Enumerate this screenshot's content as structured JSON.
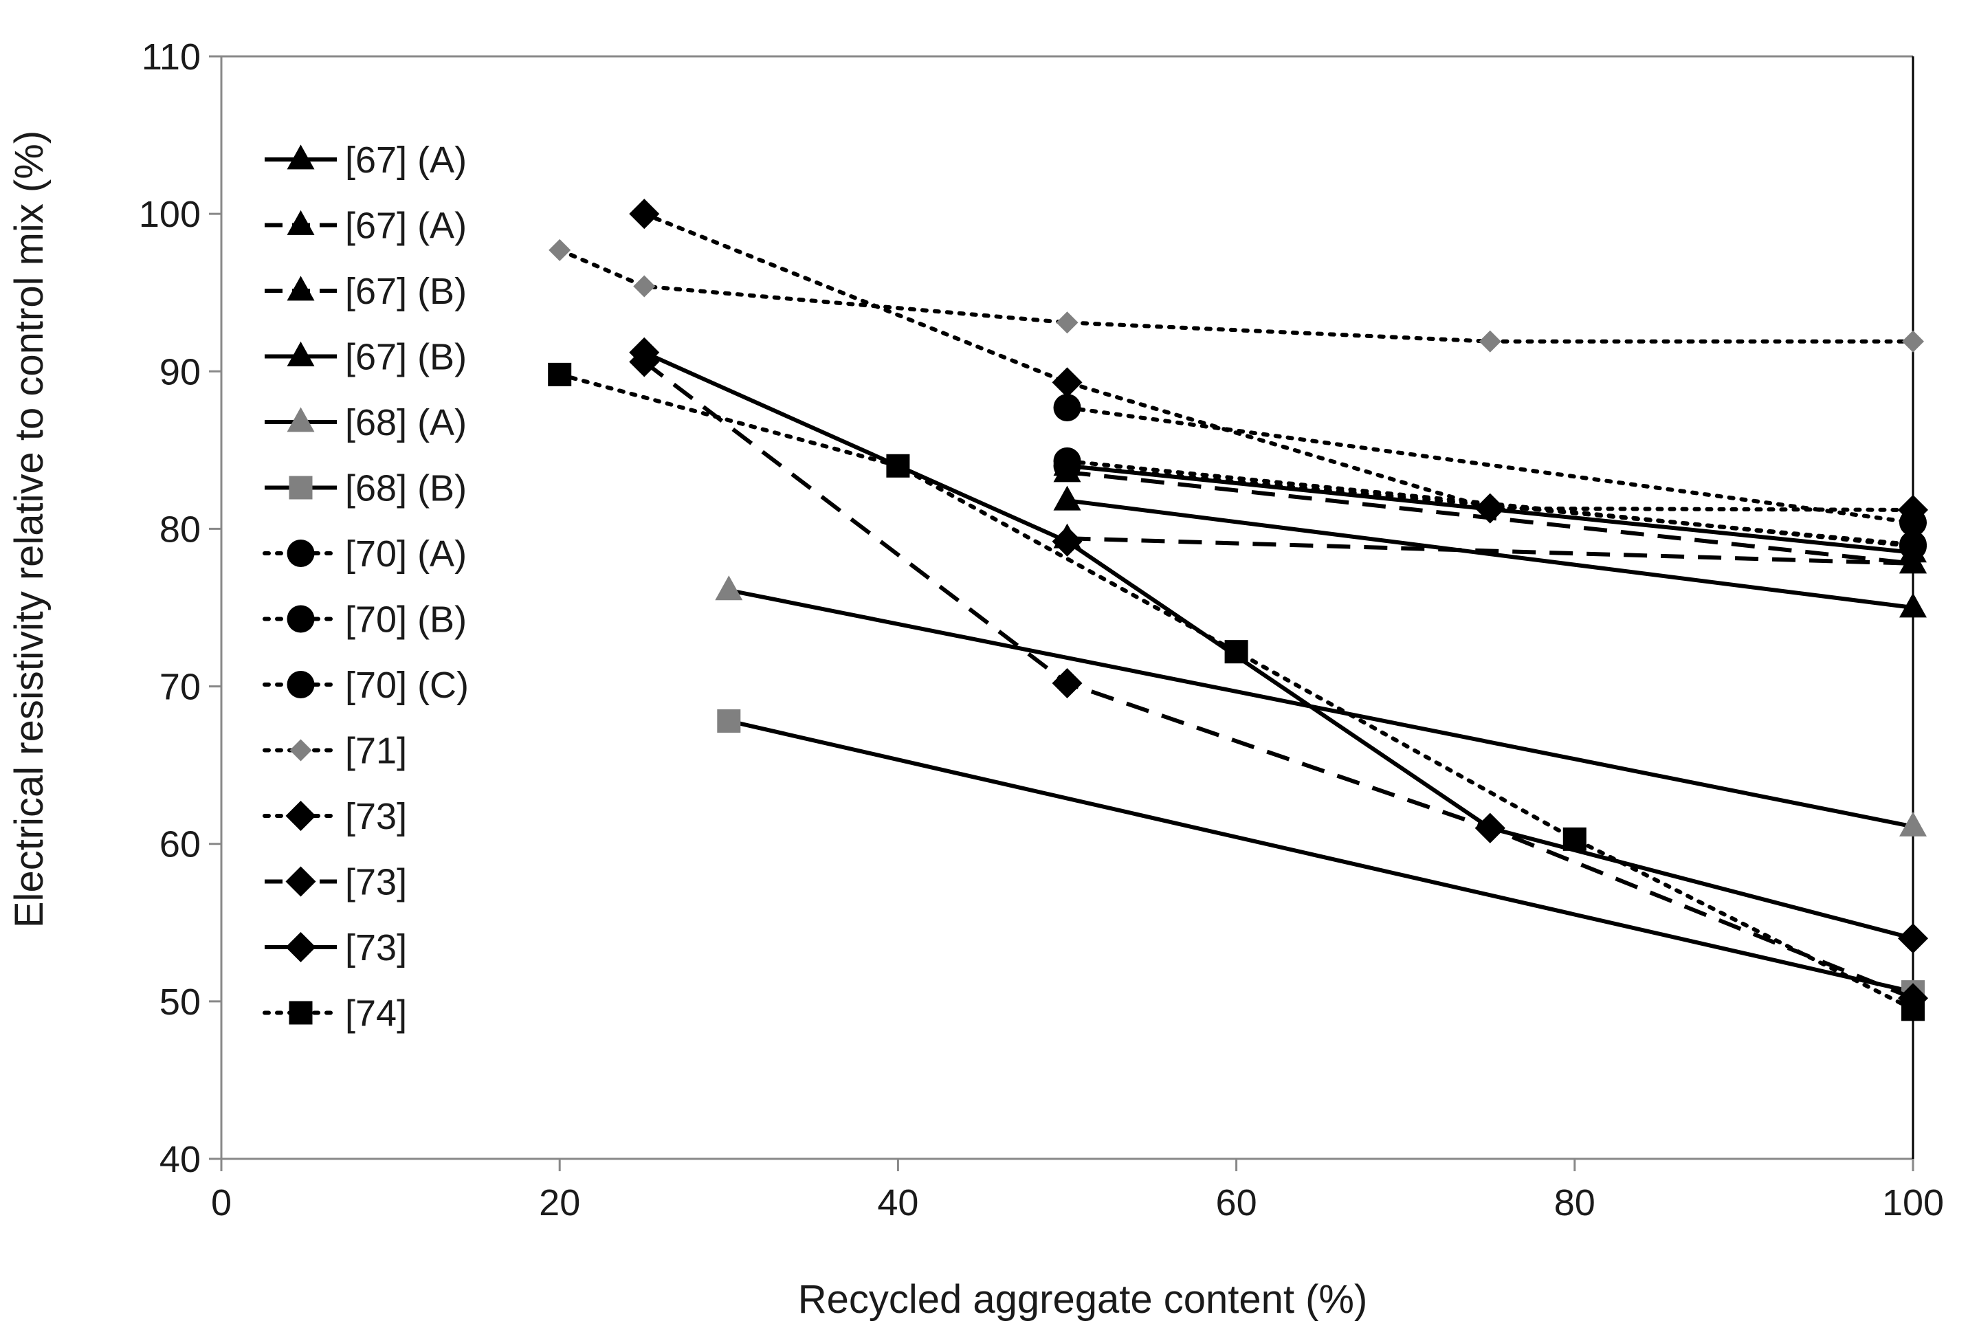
{
  "chart_data": {
    "type": "line",
    "title": "",
    "xlabel": "Recycled aggregate content (%)",
    "ylabel": "Electrical resistivity relative to control mix (%)",
    "xlim": [
      0,
      100
    ],
    "ylim": [
      40,
      110
    ],
    "xticks": [
      0,
      20,
      40,
      60,
      80,
      100
    ],
    "yticks": [
      40,
      50,
      60,
      70,
      80,
      90,
      100,
      110
    ],
    "grid": false,
    "legend_position": "top-left",
    "series": [
      {
        "name": "[67] (A)",
        "dash": "solid",
        "marker": "triangle",
        "color": "#000000",
        "x": [
          50,
          100
        ],
        "y": [
          81.8,
          75.0
        ]
      },
      {
        "name": "[67] (A)",
        "dash": "dashed",
        "marker": "triangle",
        "color": "#000000",
        "x": [
          50,
          100
        ],
        "y": [
          79.4,
          77.8
        ]
      },
      {
        "name": "[67] (B)",
        "dash": "dashed",
        "marker": "triangle",
        "color": "#000000",
        "x": [
          50,
          100
        ],
        "y": [
          83.6,
          77.8
        ]
      },
      {
        "name": "[67] (B)",
        "dash": "solid",
        "marker": "triangle",
        "color": "#000000",
        "x": [
          50,
          100
        ],
        "y": [
          84.0,
          78.5
        ]
      },
      {
        "name": "[68] (A)",
        "dash": "solid",
        "marker": "triangle",
        "color": "#808080",
        "x": [
          30,
          100
        ],
        "y": [
          76.1,
          61.1
        ]
      },
      {
        "name": "[68] (B)",
        "dash": "solid",
        "marker": "square",
        "color": "#808080",
        "x": [
          30,
          100
        ],
        "y": [
          67.8,
          50.6
        ]
      },
      {
        "name": "[70] (A)",
        "dash": "dotted",
        "marker": "circle",
        "color": "#000000",
        "x": [
          50,
          100
        ],
        "y": [
          87.7,
          80.4
        ]
      },
      {
        "name": "[70] (B)",
        "dash": "dotted",
        "marker": "circle",
        "color": "#000000",
        "x": [
          50,
          100
        ],
        "y": [
          84.3,
          78.9
        ]
      },
      {
        "name": "[70] (C)",
        "dash": "dotted",
        "marker": "circle",
        "color": "#000000",
        "x": [
          50,
          100
        ],
        "y": [
          84.0,
          79.0
        ]
      },
      {
        "name": "[71]",
        "dash": "dotted",
        "marker": "diamond-small",
        "color": "#808080",
        "x": [
          20,
          25,
          50,
          75,
          100
        ],
        "y": [
          97.7,
          95.4,
          93.1,
          91.9,
          91.9
        ]
      },
      {
        "name": "[73]",
        "dash": "dotted",
        "marker": "diamond",
        "color": "#000000",
        "x": [
          25,
          50,
          75,
          100
        ],
        "y": [
          100.0,
          89.3,
          81.3,
          81.2
        ]
      },
      {
        "name": "[73]",
        "dash": "dashed",
        "marker": "diamond",
        "color": "#000000",
        "x": [
          25,
          50,
          75,
          100
        ],
        "y": [
          90.6,
          70.2,
          61.0,
          50.2
        ]
      },
      {
        "name": "[73]",
        "dash": "solid",
        "marker": "diamond",
        "color": "#000000",
        "x": [
          25,
          50,
          75,
          100
        ],
        "y": [
          91.2,
          79.2,
          61.0,
          54.0
        ]
      },
      {
        "name": "[74]",
        "dash": "dotted",
        "marker": "square",
        "color": "#000000",
        "x": [
          20,
          40,
          60,
          80,
          100
        ],
        "y": [
          89.8,
          84.0,
          72.2,
          60.3,
          49.5
        ]
      }
    ]
  }
}
